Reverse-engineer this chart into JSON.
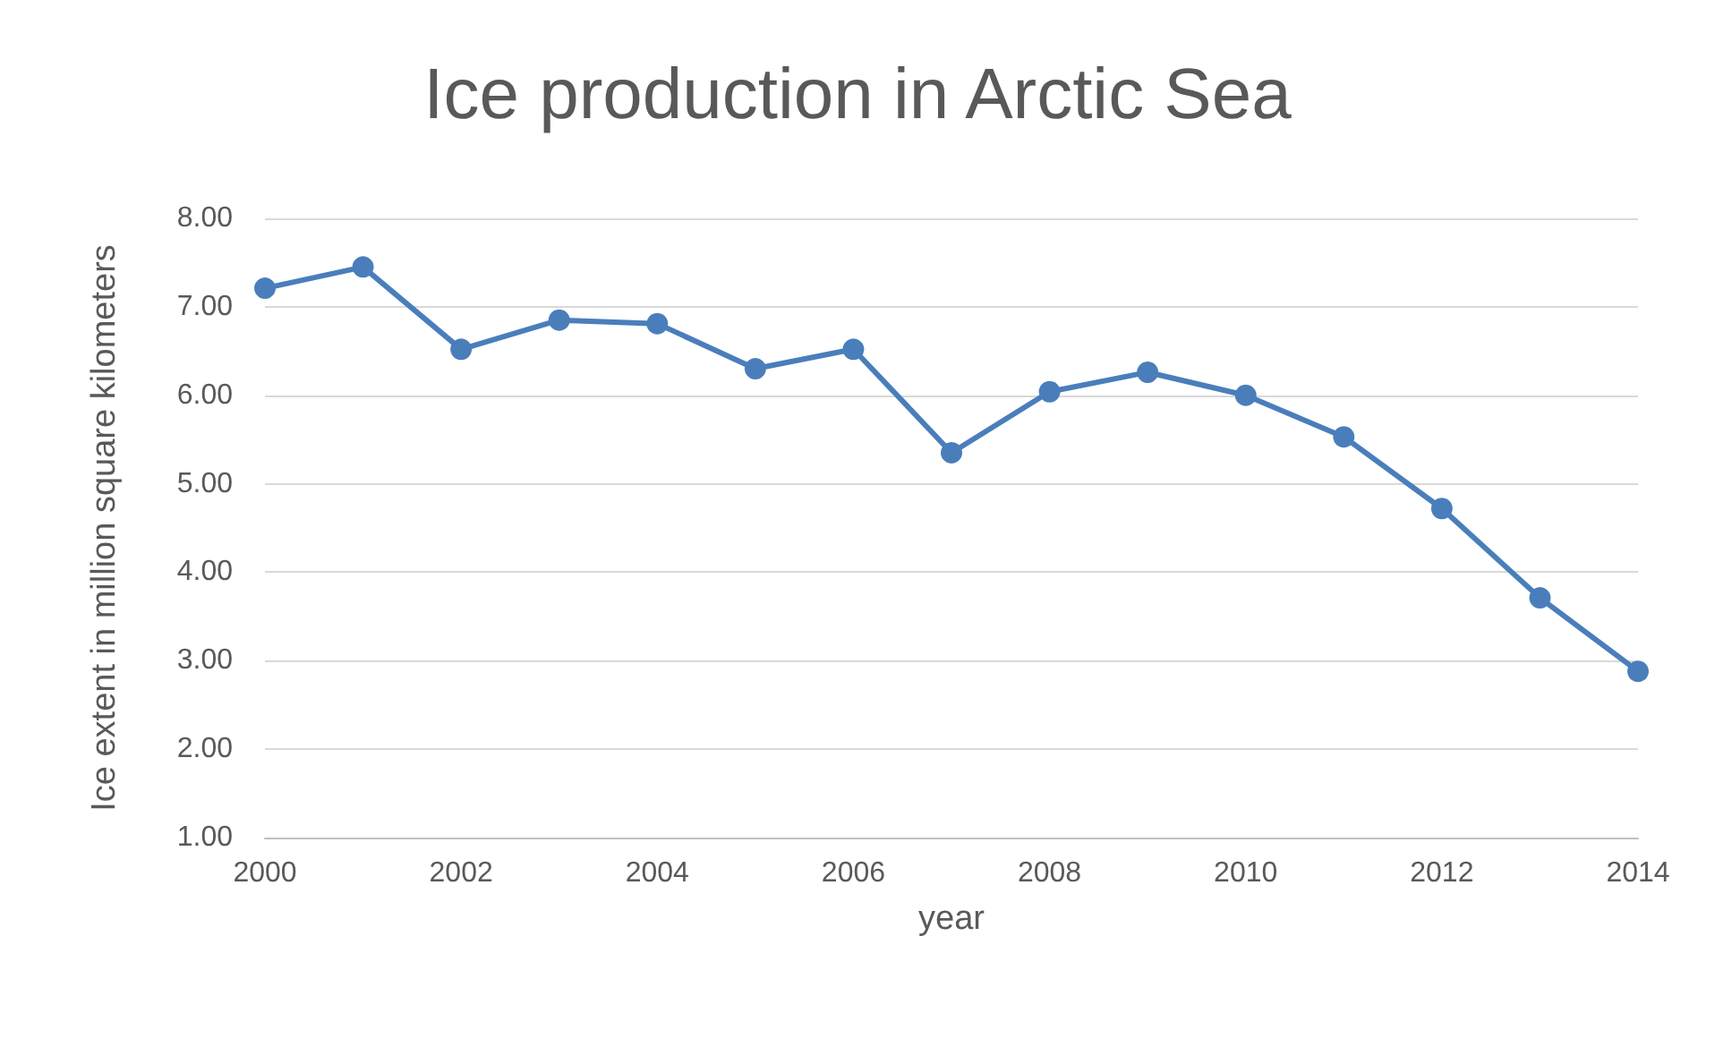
{
  "chart_data": {
    "type": "line",
    "title": "Ice production in Arctic Sea",
    "xlabel": "year",
    "ylabel": "Ice extent in million square kilometers",
    "x": [
      2000,
      2001,
      2002,
      2003,
      2004,
      2005,
      2006,
      2007,
      2008,
      2009,
      2010,
      2011,
      2012,
      2013,
      2014
    ],
    "series": [
      {
        "color": "#4a7ebb",
        "values": [
          7.21,
          7.45,
          6.52,
          6.85,
          6.81,
          6.3,
          6.52,
          5.35,
          6.04,
          6.26,
          6.0,
          5.53,
          4.72,
          3.71,
          2.88
        ]
      }
    ],
    "xlim": [
      2000,
      2014
    ],
    "xticks": [
      2000,
      2002,
      2004,
      2006,
      2008,
      2010,
      2012,
      2014
    ],
    "ylim": [
      1,
      8
    ],
    "yticks": [
      {
        "value": 1,
        "label": "1.00"
      },
      {
        "value": 2,
        "label": "2.00"
      },
      {
        "value": 3,
        "label": "3.00"
      },
      {
        "value": 4,
        "label": "4.00"
      },
      {
        "value": 5,
        "label": "5.00"
      },
      {
        "value": 6,
        "label": "6.00"
      },
      {
        "value": 7,
        "label": "7.00"
      },
      {
        "value": 8,
        "label": "8.00"
      }
    ],
    "grid": "y",
    "marker": "circle",
    "line_style": "solid"
  }
}
